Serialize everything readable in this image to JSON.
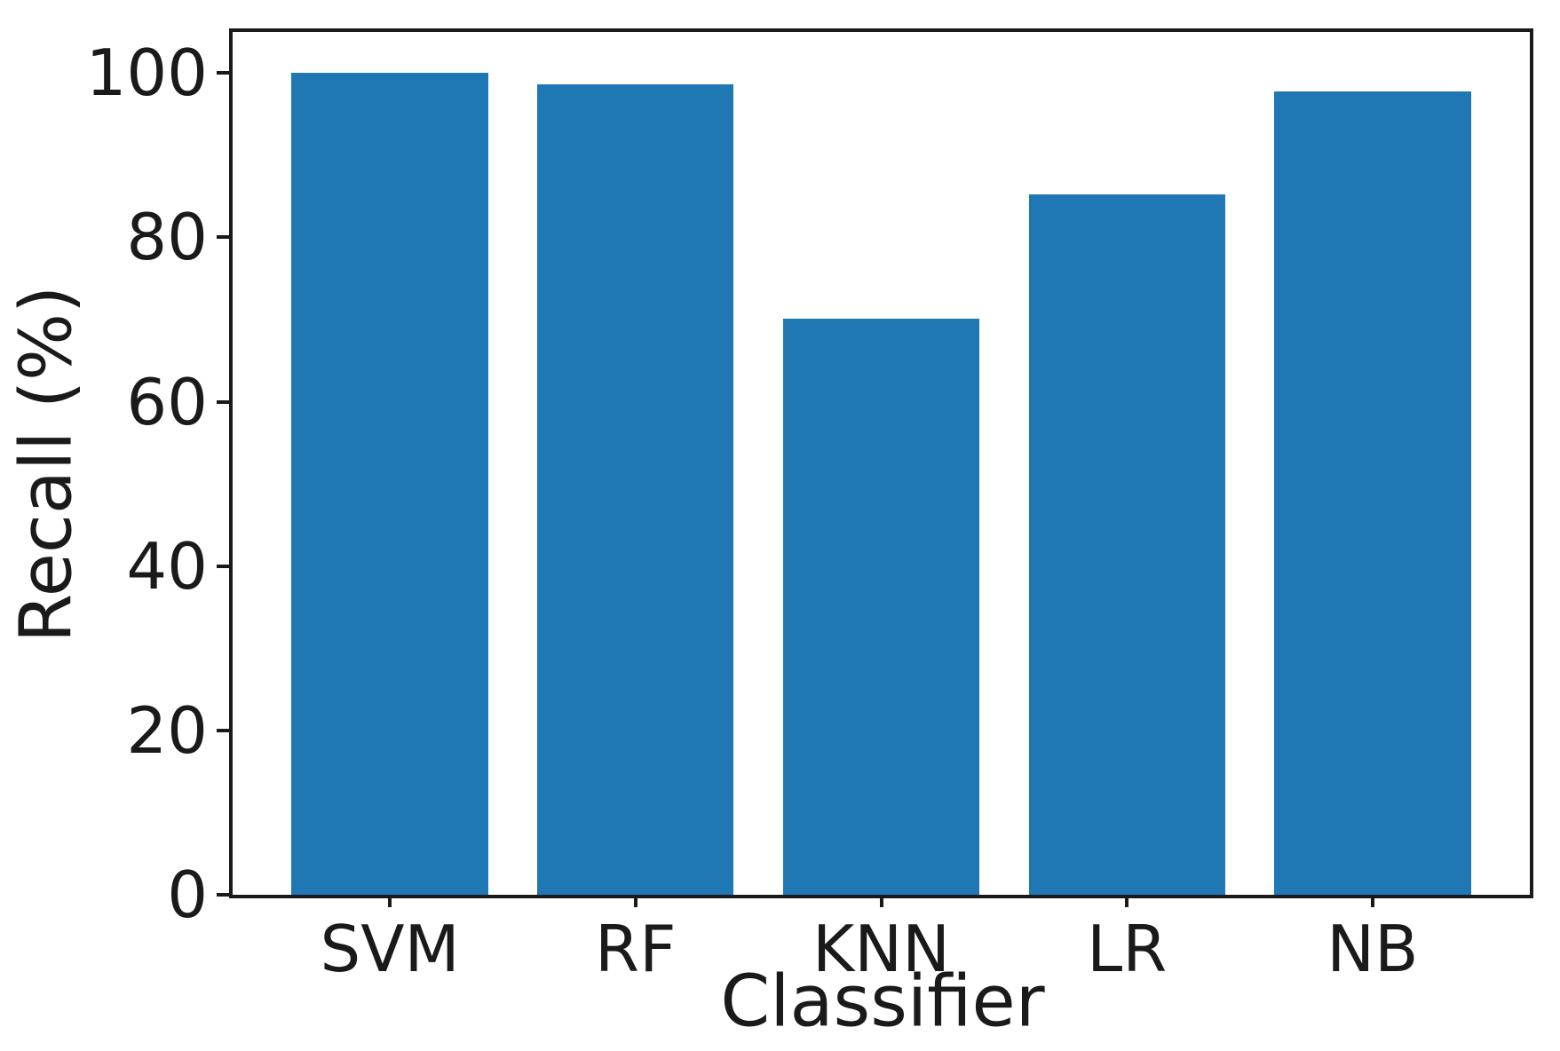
{
  "figure": {
    "background": "#ffffff",
    "title": ""
  },
  "chart_data": {
    "type": "bar",
    "categories": [
      "SVM",
      "RF",
      "KNN",
      "LR",
      "NB"
    ],
    "values": [
      100,
      98.6,
      70.1,
      85.2,
      97.8
    ],
    "title": "",
    "xlabel": "Classifier",
    "ylabel": "Recall (%)",
    "yticks": [
      0,
      20,
      40,
      60,
      80,
      100
    ],
    "ytick_labels": [
      "0",
      "20",
      "40",
      "60",
      "80",
      "100"
    ],
    "ylim": [
      0,
      105
    ],
    "xlim": [
      -0.64,
      4.64
    ],
    "bar_width": 0.8,
    "bar_color": "#1f77b4",
    "axis_color": "#1a1a1a",
    "grid": false,
    "legend_position": "none"
  }
}
